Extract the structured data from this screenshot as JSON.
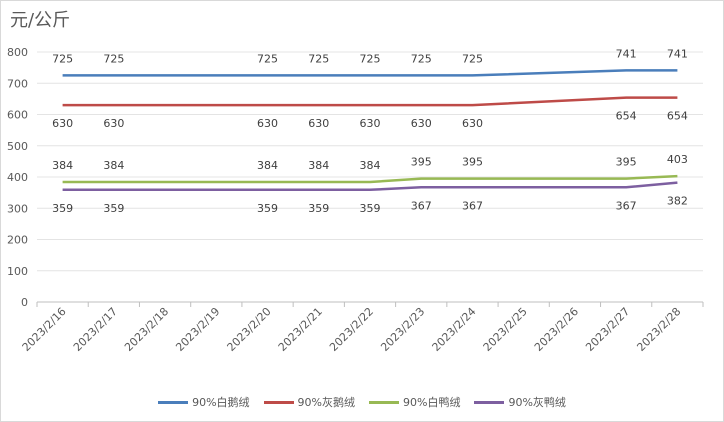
{
  "chart_data": {
    "type": "line",
    "y_unit_label": "元/公斤",
    "categories": [
      "2023/2/16",
      "2023/2/17",
      "2023/2/18",
      "2023/2/19",
      "2023/2/20",
      "2023/2/21",
      "2023/2/22",
      "2023/2/23",
      "2023/2/24",
      "2023/2/25",
      "2023/2/26",
      "2023/2/27",
      "2023/2/28"
    ],
    "ylim": [
      0,
      800
    ],
    "yticks": [
      0,
      100,
      200,
      300,
      400,
      500,
      600,
      700,
      800
    ],
    "grid": true,
    "legend_position": "bottom",
    "series": [
      {
        "name": "90%白鹅绒",
        "color": "#4a7ebb",
        "values": [
          725,
          725,
          null,
          null,
          725,
          725,
          725,
          725,
          725,
          null,
          null,
          741,
          741
        ],
        "label_pos": "above"
      },
      {
        "name": "90%灰鹅绒",
        "color": "#be4b48",
        "values": [
          630,
          630,
          null,
          null,
          630,
          630,
          630,
          630,
          630,
          null,
          null,
          654,
          654
        ],
        "label_pos": "below"
      },
      {
        "name": "90%白鸭绒",
        "color": "#98b954",
        "values": [
          384,
          384,
          null,
          null,
          384,
          384,
          384,
          395,
          395,
          null,
          null,
          395,
          403
        ],
        "label_pos": "above"
      },
      {
        "name": "90%灰鸭绒",
        "color": "#7d5fa0",
        "values": [
          359,
          359,
          null,
          null,
          359,
          359,
          359,
          367,
          367,
          null,
          null,
          367,
          382
        ],
        "label_pos": "below"
      }
    ]
  }
}
